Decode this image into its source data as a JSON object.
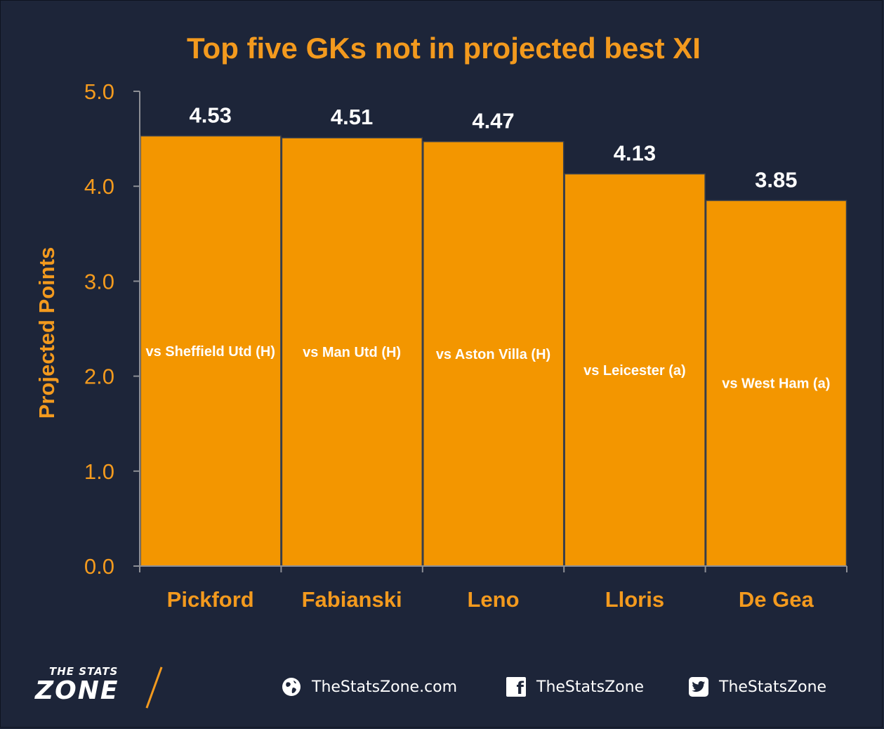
{
  "chart_data": {
    "type": "bar",
    "title": "Top five GKs not in projected best XI",
    "ylabel": "Projected Points",
    "xlabel": "",
    "ylim": [
      0,
      5
    ],
    "yticks": [
      "0.0",
      "1.0",
      "2.0",
      "3.0",
      "4.0",
      "5.0"
    ],
    "categories": [
      "Pickford",
      "Fabianski",
      "Leno",
      "Lloris",
      "De Gea"
    ],
    "values": [
      4.53,
      4.51,
      4.47,
      4.13,
      3.85
    ],
    "value_labels": [
      "4.53",
      "4.51",
      "4.47",
      "4.13",
      "3.85"
    ],
    "fixtures": [
      "vs Sheffield Utd (H)",
      "vs Man Utd (H)",
      "vs Aston Villa (H)",
      "vs Leicester (a)",
      "vs West Ham (a)"
    ],
    "colors": {
      "bar": "#f39600",
      "text_accent": "#f39a1e",
      "background": "#1d2539"
    }
  },
  "footer": {
    "brand_top": "THE STATS",
    "brand_main": "ZONE",
    "website": "TheStatsZone.com",
    "facebook": "TheStatsZone",
    "twitter": "TheStatsZone",
    "website_icon": "globe-icon",
    "facebook_icon": "facebook-icon",
    "twitter_icon": "twitter-icon"
  }
}
